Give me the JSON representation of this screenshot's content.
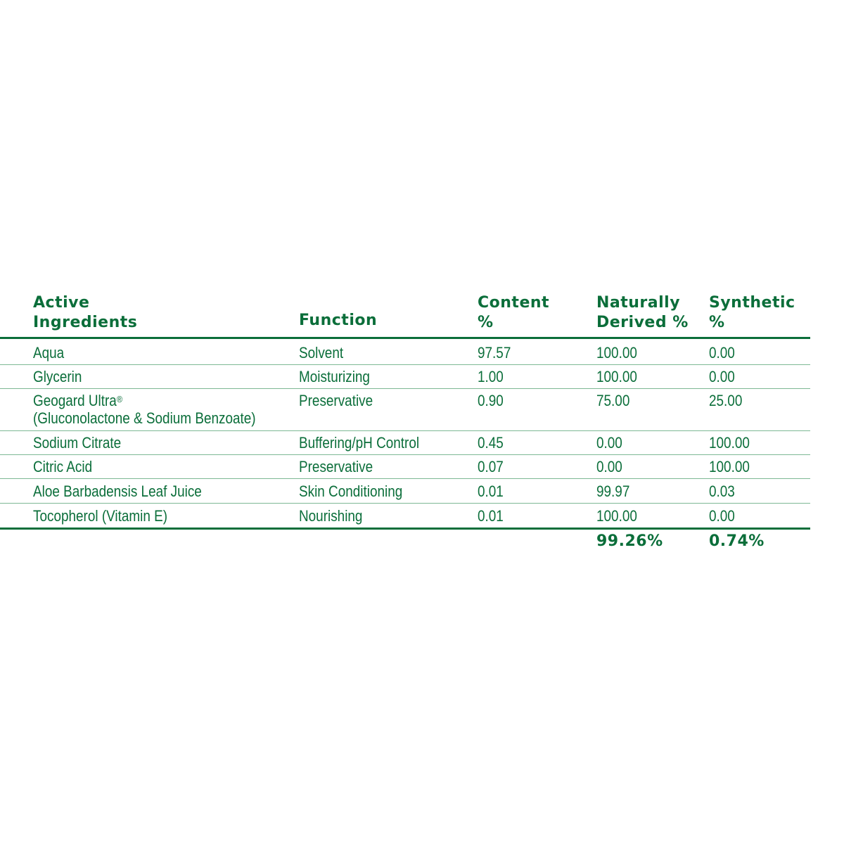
{
  "colors": {
    "text": "#0b6e3a",
    "rule": "#0b6e3a",
    "divider": "#7db894"
  },
  "headers": [
    {
      "line1": "Active",
      "line2": "Ingredients"
    },
    {
      "line1": "",
      "line2": "Function"
    },
    {
      "line1": "Content",
      "line2": "%"
    },
    {
      "line1": "Naturally",
      "line2": "Derived %"
    },
    {
      "line1": "Synthetic",
      "line2": "%"
    }
  ],
  "rows": [
    {
      "ingredient": "Aqua",
      "function": "Solvent",
      "content": "97.57",
      "natural": "100.00",
      "synthetic": "0.00"
    },
    {
      "ingredient": "Glycerin",
      "function": "Moisturizing",
      "content": "1.00",
      "natural": "100.00",
      "synthetic": "0.00"
    },
    {
      "ingredient": "Geogard Ultra",
      "ingredient_mark": "®",
      "ingredient_sub": "(Gluconolactone & Sodium Benzoate)",
      "function": "Preservative",
      "content": "0.90",
      "natural": "75.00",
      "synthetic": "25.00"
    },
    {
      "ingredient": "Sodium Citrate",
      "function": "Buffering/pH Control",
      "content": "0.45",
      "natural": "0.00",
      "synthetic": "100.00"
    },
    {
      "ingredient": "Citric Acid",
      "function": "Preservative",
      "content": "0.07",
      "natural": "0.00",
      "synthetic": "100.00"
    },
    {
      "ingredient": "Aloe Barbadensis Leaf Juice",
      "function": "Skin Conditioning",
      "content": "0.01",
      "natural": "99.97",
      "synthetic": "0.03"
    },
    {
      "ingredient": "Tocopherol (Vitamin E)",
      "function": "Nourishing",
      "content": "0.01",
      "natural": "100.00",
      "synthetic": "0.00"
    }
  ],
  "totals": {
    "natural": "99.26%",
    "synthetic": "0.74%"
  }
}
